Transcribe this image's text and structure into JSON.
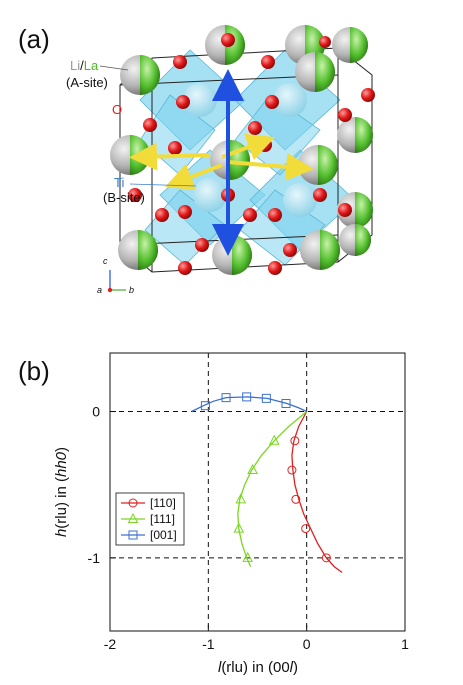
{
  "panel_a": {
    "label": "(a)",
    "site_a_label_li": "Li",
    "site_a_label_sep": "/",
    "site_a_label_la": "La",
    "site_a_note": "(A-site)",
    "oxygen_label": "O",
    "site_b_label": "Ti",
    "site_b_note": "(B-site)",
    "axis_c": "c",
    "axis_a": "a",
    "axis_b": "b",
    "colors": {
      "li_sphere": "#b8b8b8",
      "la_sphere": "#5fc93a",
      "oxygen": "#e01818",
      "octahedra": "#7fd4ee",
      "arrow_001": "#2050e0",
      "arrow_110": "#f2dc3a",
      "ti_label": "#3a7fd0",
      "o_label": "#e02020"
    }
  },
  "panel_b": {
    "label": "(b)",
    "chart_data": {
      "type": "line",
      "xlabel_prefix": "l",
      "xlabel_mid": "(rlu) in (00",
      "xlabel_ital": "l",
      "xlabel_suffix": ")",
      "ylabel_prefix": "h",
      "ylabel_mid": "(rlu) in (",
      "ylabel_ital": "hh0",
      "ylabel_suffix": ")",
      "xlim": [
        -2,
        1
      ],
      "ylim": [
        -1.5,
        0.4
      ],
      "xticks": [
        -2,
        -1,
        0,
        1
      ],
      "yticks": [
        0,
        -1
      ],
      "grid_dashed_x": [
        -1,
        0
      ],
      "grid_dashed_y": [
        0,
        -1
      ],
      "legend_position": "left",
      "series": [
        {
          "name": "[110]",
          "color": "#e02020",
          "marker": "circle",
          "curve": [
            [
              0.0,
              0.0
            ],
            [
              -0.08,
              -0.1
            ],
            [
              -0.13,
              -0.2
            ],
            [
              -0.15,
              -0.3
            ],
            [
              -0.14,
              -0.4
            ],
            [
              -0.12,
              -0.5
            ],
            [
              -0.08,
              -0.6
            ],
            [
              -0.03,
              -0.7
            ],
            [
              0.04,
              -0.8
            ],
            [
              0.11,
              -0.9
            ],
            [
              0.2,
              -1.0
            ],
            [
              0.28,
              -1.06
            ],
            [
              0.36,
              -1.1
            ]
          ],
          "markers": [
            [
              -0.12,
              -0.2
            ],
            [
              -0.15,
              -0.4
            ],
            [
              -0.11,
              -0.6
            ],
            [
              -0.01,
              -0.8
            ],
            [
              0.2,
              -1.0
            ]
          ]
        },
        {
          "name": "[111]",
          "color": "#7ad620",
          "marker": "triangle",
          "curve": [
            [
              0.0,
              0.0
            ],
            [
              -0.18,
              -0.1
            ],
            [
              -0.33,
              -0.2
            ],
            [
              -0.46,
              -0.3
            ],
            [
              -0.56,
              -0.4
            ],
            [
              -0.63,
              -0.5
            ],
            [
              -0.68,
              -0.6
            ],
            [
              -0.7,
              -0.7
            ],
            [
              -0.69,
              -0.8
            ],
            [
              -0.66,
              -0.9
            ],
            [
              -0.61,
              -1.0
            ],
            [
              -0.57,
              -1.06
            ]
          ],
          "markers": [
            [
              -0.33,
              -0.2
            ],
            [
              -0.55,
              -0.4
            ],
            [
              -0.67,
              -0.6
            ],
            [
              -0.69,
              -0.8
            ],
            [
              -0.6,
              -1.0
            ]
          ]
        },
        {
          "name": "[001]",
          "color": "#3a70d0",
          "marker": "square",
          "curve": [
            [
              -1.17,
              0.0
            ],
            [
              -1.05,
              0.04
            ],
            [
              -0.95,
              0.07
            ],
            [
              -0.82,
              0.095
            ],
            [
              -0.6,
              0.1
            ],
            [
              -0.4,
              0.09
            ],
            [
              -0.2,
              0.055
            ],
            [
              -0.08,
              0.025
            ],
            [
              0.0,
              0.0
            ]
          ],
          "markers": [
            [
              -1.03,
              0.04
            ],
            [
              -0.82,
              0.095
            ],
            [
              -0.61,
              0.1
            ],
            [
              -0.41,
              0.09
            ],
            [
              -0.21,
              0.055
            ]
          ]
        }
      ]
    }
  }
}
